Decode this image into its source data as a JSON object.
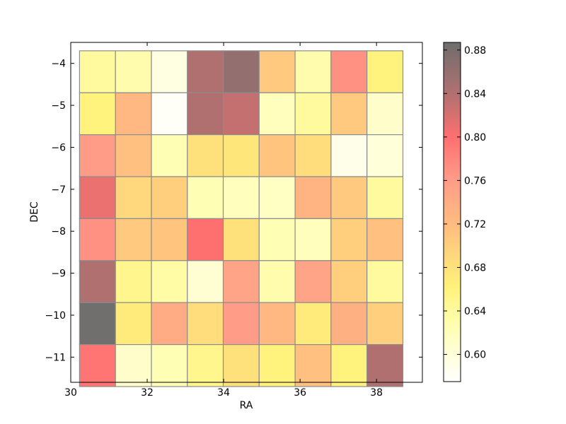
{
  "chart_data": {
    "type": "heatmap",
    "xlabel": "RA",
    "ylabel": "DEC",
    "xlim": [
      30,
      39.2
    ],
    "ylim": [
      -11.6,
      -3.5
    ],
    "x_ticks": [
      30,
      32,
      34,
      36,
      38
    ],
    "y_ticks": [
      -4,
      -5,
      -6,
      -7,
      -8,
      -9,
      -10,
      -11
    ],
    "x_centers": [
      30.7,
      31.64,
      32.58,
      33.52,
      34.46,
      35.4,
      36.34,
      37.28,
      38.22
    ],
    "y_centers": [
      -4.2,
      -5.2,
      -6.2,
      -7.2,
      -8.2,
      -9.2,
      -10.2,
      -11.2
    ],
    "cell_width": 0.94,
    "cell_height": 1.0,
    "values": [
      [
        0.64,
        0.63,
        0.595,
        0.84,
        0.86,
        0.705,
        0.63,
        0.77,
        0.66
      ],
      [
        0.66,
        0.725,
        0.58,
        0.84,
        0.83,
        0.62,
        0.64,
        0.705,
        0.61
      ],
      [
        0.76,
        0.715,
        0.625,
        0.68,
        0.675,
        0.71,
        0.685,
        0.59,
        0.6
      ],
      [
        0.81,
        0.69,
        0.7,
        0.625,
        0.62,
        0.615,
        0.73,
        0.705,
        0.64
      ],
      [
        0.77,
        0.705,
        0.71,
        0.8,
        0.68,
        0.625,
        0.62,
        0.7,
        0.715
      ],
      [
        0.84,
        0.65,
        0.635,
        0.605,
        0.75,
        0.63,
        0.75,
        0.7,
        0.64
      ],
      [
        0.885,
        0.67,
        0.74,
        0.685,
        0.76,
        0.725,
        0.67,
        0.735,
        0.7
      ],
      [
        0.795,
        0.61,
        0.625,
        0.65,
        0.68,
        0.66,
        0.715,
        0.66,
        0.84
      ]
    ],
    "colorbar": {
      "min": 0.575,
      "max": 0.887,
      "ticks": [
        "0.60",
        "0.64",
        "0.68",
        "0.72",
        "0.76",
        "0.80",
        "0.84",
        "0.88"
      ],
      "tick_values": [
        0.6,
        0.64,
        0.68,
        0.72,
        0.76,
        0.8,
        0.84,
        0.88
      ]
    },
    "colormap_stops": [
      {
        "v": 0.0,
        "color": "#ffffff"
      },
      {
        "v": 0.17,
        "color": "#fffeb0"
      },
      {
        "v": 0.28,
        "color": "#fff27a"
      },
      {
        "v": 0.45,
        "color": "#ffc080"
      },
      {
        "v": 0.6,
        "color": "#ff9a88"
      },
      {
        "v": 0.72,
        "color": "#ff7070"
      },
      {
        "v": 0.85,
        "color": "#b07070"
      },
      {
        "v": 1.0,
        "color": "#6e6e6e"
      }
    ],
    "grid": false
  }
}
